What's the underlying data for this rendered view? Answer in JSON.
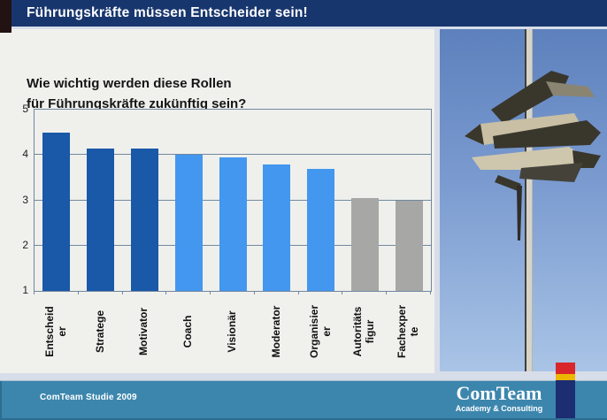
{
  "banner": {
    "title": "Führungskräfte müssen Entscheider sein!"
  },
  "chart": {
    "title_line1": "Wie wichtig werden diese Rollen",
    "title_line2": "für Führungskräfte zukünftig sein?"
  },
  "chart_data": {
    "type": "bar",
    "title": "Wie wichtig werden diese Rollen für Führungskräfte zukünftig sein?",
    "categories": [
      "Entscheider",
      "Stratege",
      "Motivator",
      "Coach",
      "Visionär",
      "Moderator",
      "Organisierer",
      "Autoritätsfigur",
      "Fachexperte"
    ],
    "label_lines": [
      [
        "Entscheid",
        "er"
      ],
      [
        "Stratege"
      ],
      [
        "Motivator"
      ],
      [
        "Coach"
      ],
      [
        "Visionär"
      ],
      [
        "Moderator"
      ],
      [
        "Organisier",
        "er"
      ],
      [
        "Autoritäts",
        "figur"
      ],
      [
        "Fachexper",
        "te"
      ]
    ],
    "values": [
      4.5,
      4.15,
      4.15,
      4.0,
      3.95,
      3.8,
      3.7,
      3.05,
      3.0
    ],
    "bar_colors": [
      "#1a58a8",
      "#1a58a8",
      "#1a58a8",
      "#4397ef",
      "#4397ef",
      "#4397ef",
      "#4397ef",
      "#a7a7a5",
      "#a7a7a5"
    ],
    "ylim": [
      1,
      5
    ],
    "yticks": [
      1,
      2,
      3,
      4,
      5
    ],
    "grid": true,
    "legend": false,
    "xlabel": "",
    "ylabel": ""
  },
  "footer": {
    "source": "ComTeam Studie 2009",
    "logo_name": "ComTeam",
    "logo_subtitle": "Academy & Consulting"
  },
  "colors": {
    "banner_bg": "#18366e",
    "bar_dark_blue": "#1a58a8",
    "bar_light_blue": "#4397ef",
    "bar_gray": "#a7a7a5",
    "footer_bg": "#3c86ad",
    "flag_red": "#d9262b",
    "flag_gold": "#edb700",
    "flag_navy": "#1d2d72"
  }
}
